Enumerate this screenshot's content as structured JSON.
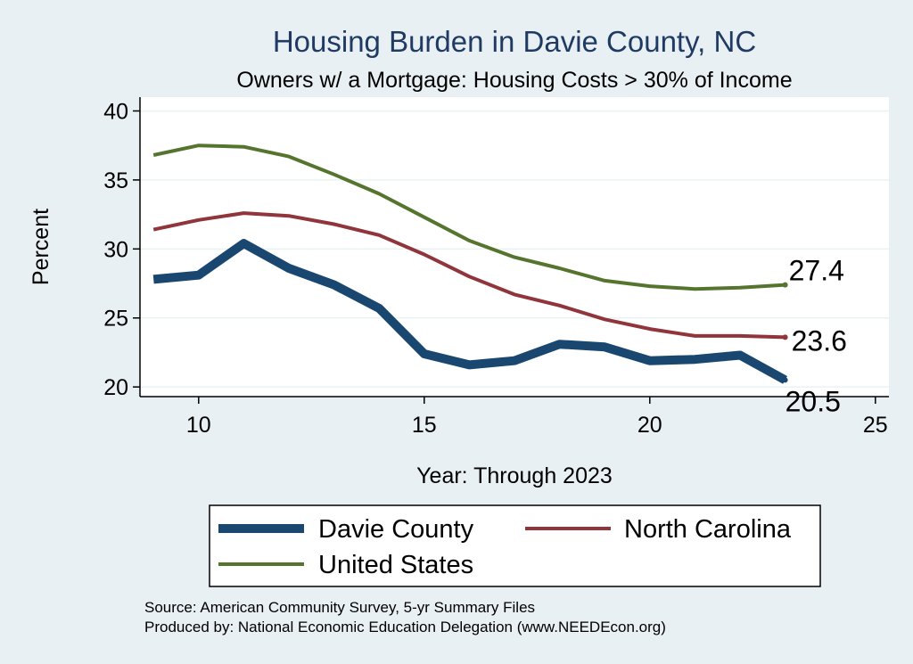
{
  "chart_data": {
    "type": "line",
    "title": "Housing Burden in Davie County, NC",
    "subtitle": "Owners w/ a Mortgage: Housing Costs > 30% of Income",
    "xlabel": "Year: Through 2023",
    "ylabel": "Percent",
    "xlim": [
      8.7,
      25.3
    ],
    "ylim": [
      19.3,
      41
    ],
    "x_ticks": [
      10,
      15,
      20,
      25
    ],
    "y_ticks": [
      20,
      25,
      30,
      35,
      40
    ],
    "grid": true,
    "x": [
      9,
      10,
      11,
      12,
      13,
      14,
      15,
      16,
      17,
      18,
      19,
      20,
      21,
      22,
      23
    ],
    "series": [
      {
        "name": "Davie County",
        "color": "#1a476f",
        "values": [
          27.8,
          28.1,
          30.4,
          28.6,
          27.4,
          25.7,
          22.4,
          21.6,
          21.9,
          23.1,
          22.9,
          21.9,
          22.0,
          22.3,
          20.5
        ],
        "end_label": "20.5"
      },
      {
        "name": "North Carolina",
        "color": "#90353b",
        "values": [
          31.4,
          32.1,
          32.6,
          32.4,
          31.8,
          31.0,
          29.6,
          28.0,
          26.7,
          25.9,
          24.9,
          24.2,
          23.7,
          23.7,
          23.6
        ],
        "end_label": "23.6"
      },
      {
        "name": "United States",
        "color": "#55752f",
        "values": [
          36.8,
          37.5,
          37.4,
          36.7,
          35.4,
          34.0,
          32.3,
          30.6,
          29.4,
          28.6,
          27.7,
          27.3,
          27.1,
          27.2,
          27.4
        ],
        "end_label": "27.4"
      }
    ],
    "legend_position": "bottom"
  },
  "notes": {
    "source": "Source: American Community Survey, 5-yr Summary Files",
    "produced_by": "Produced by: National Economic Education Delegation (www.NEEDEcon.org)"
  }
}
